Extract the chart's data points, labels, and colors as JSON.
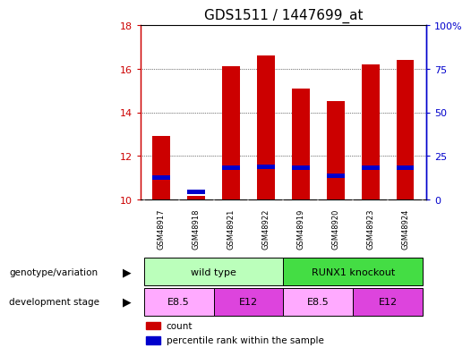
{
  "title": "GDS1511 / 1447699_at",
  "samples": [
    "GSM48917",
    "GSM48918",
    "GSM48921",
    "GSM48922",
    "GSM48919",
    "GSM48920",
    "GSM48923",
    "GSM48924"
  ],
  "bar_heights": [
    12.9,
    10.15,
    16.1,
    16.6,
    15.1,
    14.5,
    16.2,
    16.4
  ],
  "blue_heights": [
    11.0,
    10.35,
    11.45,
    11.5,
    11.45,
    11.1,
    11.45,
    11.45
  ],
  "bar_color": "#cc0000",
  "blue_color": "#0000cc",
  "ylim_left": [
    10,
    18
  ],
  "ylim_right": [
    0,
    100
  ],
  "yticks_left": [
    10,
    12,
    14,
    16,
    18
  ],
  "yticks_right": [
    0,
    25,
    50,
    75,
    100
  ],
  "yticklabels_right": [
    "0",
    "25",
    "50",
    "75",
    "100%"
  ],
  "bar_width": 0.5,
  "background_color": "#ffffff",
  "plot_bg_color": "#ffffff",
  "grid_color": "#000000",
  "title_fontsize": 11,
  "genotype_groups": [
    {
      "label": "wild type",
      "start": 0,
      "end": 3,
      "color": "#bbffbb"
    },
    {
      "label": "RUNX1 knockout",
      "start": 4,
      "end": 7,
      "color": "#44dd44"
    }
  ],
  "stage_groups": [
    {
      "label": "E8.5",
      "start": 0,
      "end": 1,
      "color": "#ffaaff"
    },
    {
      "label": "E12",
      "start": 2,
      "end": 3,
      "color": "#dd44dd"
    },
    {
      "label": "E8.5",
      "start": 4,
      "end": 5,
      "color": "#ffaaff"
    },
    {
      "label": "E12",
      "start": 6,
      "end": 7,
      "color": "#dd44dd"
    }
  ],
  "sample_label_bg": "#cccccc",
  "legend_count_color": "#cc0000",
  "legend_pct_color": "#0000cc",
  "left_label_color": "#cc0000",
  "right_label_color": "#0000cc",
  "left_spine_color": "#cc0000",
  "right_spine_color": "#0000cc"
}
